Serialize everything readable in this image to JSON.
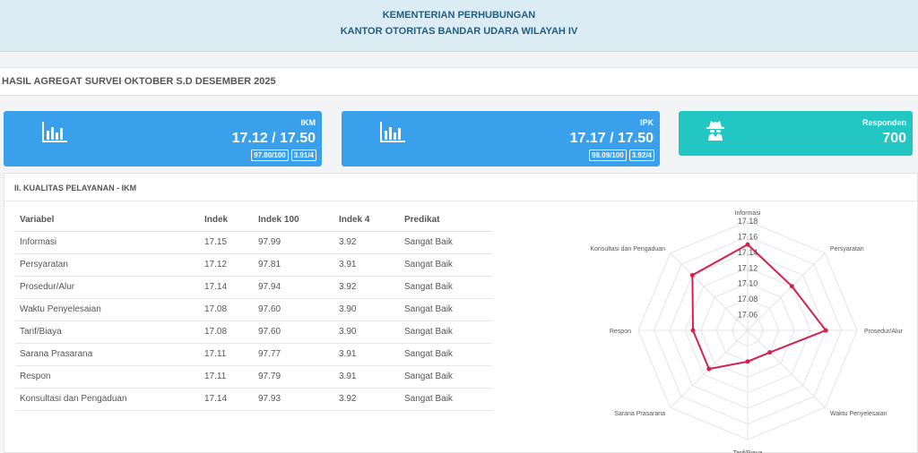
{
  "header": {
    "line1": "KEMENTERIAN PERHUBUNGAN",
    "line2": "KANTOR OTORITAS BANDAR UDARA WILAYAH IV"
  },
  "page_title": "HASIL AGREGAT SURVEI OKTOBER S.D DESEMBER 2025",
  "cards": {
    "ikm": {
      "label": "IKM",
      "value": "17.12 / 17.50",
      "badge1": "97.80/100",
      "badge2": "3.91/4",
      "icon": "bar-chart-icon",
      "color": "#3aa0eb"
    },
    "ipk": {
      "label": "IPK",
      "value": "17.17 / 17.50",
      "badge1": "98.09/100",
      "badge2": "3.92/4",
      "icon": "bar-chart-icon",
      "color": "#3aa0eb"
    },
    "responden": {
      "label": "Responden",
      "value": "700",
      "icon": "user-secret-icon",
      "color": "#22c7c4"
    }
  },
  "panel": {
    "title": "II. KUALITAS PELAYANAN - IKM",
    "table": {
      "headers": [
        "Variabel",
        "Indek",
        "Indek 100",
        "Indek 4",
        "Predikat"
      ],
      "rows": [
        [
          "Informasi",
          "17.15",
          "97.99",
          "3.92",
          "Sangat Baik"
        ],
        [
          "Persyaratan",
          "17.12",
          "97.81",
          "3.91",
          "Sangat Baik"
        ],
        [
          "Prosedur/Alur",
          "17.14",
          "97.94",
          "3.92",
          "Sangat Baik"
        ],
        [
          "Waktu Penyelesaian",
          "17.08",
          "97.60",
          "3.90",
          "Sangat Baik"
        ],
        [
          "Tarif/Biaya",
          "17.08",
          "97.60",
          "3.90",
          "Sangat Baik"
        ],
        [
          "Sarana Prasarana",
          "17.11",
          "97.77",
          "3.91",
          "Sangat Baik"
        ],
        [
          "Respon",
          "17.11",
          "97.79",
          "3.91",
          "Sangat Baik"
        ],
        [
          "Konsultasi dan Pengaduan",
          "17.14",
          "97.93",
          "3.92",
          "Sangat Baik"
        ]
      ]
    }
  },
  "chart_data": {
    "type": "radar",
    "categories": [
      "Informasi",
      "Persyaratan",
      "Prosedur/Alur",
      "Waktu Penyelesaian",
      "Tarif/Biaya",
      "Sarana Prasarana",
      "Respon",
      "Konsultasi dan Pengaduan"
    ],
    "values": [
      17.15,
      17.12,
      17.14,
      17.08,
      17.08,
      17.11,
      17.11,
      17.14
    ],
    "scale_min": 17.04,
    "scale_max": 17.18,
    "tick_labels": [
      "17.18",
      "17.16",
      "17.14",
      "17.12",
      "17.10",
      "17.08",
      "17.06"
    ],
    "line_color": "#d6204e",
    "grid": true
  }
}
